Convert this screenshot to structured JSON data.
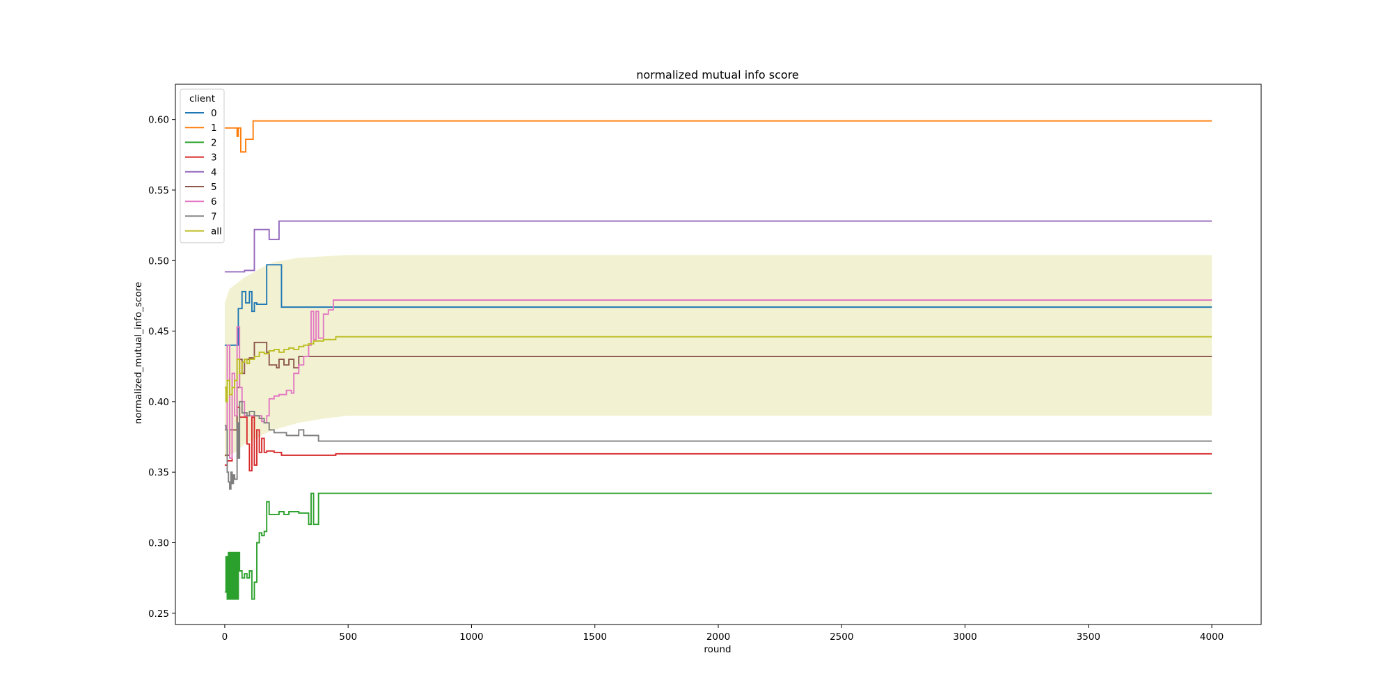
{
  "chart_data": {
    "type": "line",
    "title": "normalized mutual info score",
    "xlabel": "round",
    "ylabel": "normalized_mutual_info_score",
    "xlim": [
      -200,
      4200
    ],
    "ylim": [
      0.242,
      0.625
    ],
    "x_ticks": [
      0,
      500,
      1000,
      1500,
      2000,
      2500,
      3000,
      3500,
      4000
    ],
    "y_ticks": [
      0.25,
      0.3,
      0.35,
      0.4,
      0.45,
      0.5,
      0.55,
      0.6
    ],
    "x_tick_labels": [
      "0",
      "500",
      "1000",
      "1500",
      "2000",
      "2500",
      "3000",
      "3500",
      "4000"
    ],
    "y_tick_labels": [
      "0.25",
      "0.30",
      "0.35",
      "0.40",
      "0.45",
      "0.50",
      "0.55",
      "0.60"
    ],
    "grid": false,
    "legend": {
      "title": "client",
      "placement": "top-left"
    },
    "band": {
      "series": "all",
      "color": "#bcbd22",
      "opacity": 0.2,
      "x": [
        0,
        20,
        50,
        80,
        120,
        160,
        200,
        300,
        400,
        500,
        1000,
        2000,
        3000,
        4000
      ],
      "upper": [
        0.47,
        0.48,
        0.484,
        0.488,
        0.492,
        0.496,
        0.499,
        0.502,
        0.503,
        0.504,
        0.504,
        0.504,
        0.504,
        0.504
      ],
      "lower": [
        0.36,
        0.362,
        0.365,
        0.37,
        0.373,
        0.377,
        0.38,
        0.385,
        0.388,
        0.39,
        0.39,
        0.39,
        0.39,
        0.39
      ]
    },
    "series": [
      {
        "name": "0",
        "color": "#1f77b4",
        "x": [
          0,
          10,
          40,
          55,
          70,
          85,
          100,
          110,
          120,
          130,
          160,
          170,
          220,
          230,
          4000
        ],
        "y": [
          0.44,
          0.44,
          0.44,
          0.466,
          0.478,
          0.47,
          0.478,
          0.464,
          0.47,
          0.469,
          0.469,
          0.497,
          0.497,
          0.467,
          0.467
        ]
      },
      {
        "name": "1",
        "color": "#ff7f0e",
        "x": [
          0,
          15,
          40,
          50,
          55,
          65,
          75,
          85,
          110,
          115,
          120,
          4000
        ],
        "y": [
          0.594,
          0.594,
          0.594,
          0.588,
          0.594,
          0.577,
          0.577,
          0.586,
          0.586,
          0.599,
          0.599,
          0.599
        ]
      },
      {
        "name": "2",
        "color": "#2ca02c",
        "x": [
          0,
          5,
          10,
          15,
          20,
          25,
          30,
          35,
          40,
          45,
          50,
          55,
          60,
          70,
          80,
          90,
          100,
          110,
          120,
          130,
          140,
          150,
          160,
          170,
          180,
          190,
          220,
          240,
          260,
          300,
          340,
          350,
          360,
          380,
          400,
          4000
        ],
        "y": [
          0.265,
          0.29,
          0.26,
          0.293,
          0.26,
          0.293,
          0.26,
          0.293,
          0.26,
          0.293,
          0.26,
          0.293,
          0.28,
          0.275,
          0.278,
          0.275,
          0.28,
          0.26,
          0.272,
          0.3,
          0.307,
          0.305,
          0.308,
          0.329,
          0.32,
          0.32,
          0.322,
          0.32,
          0.322,
          0.321,
          0.313,
          0.335,
          0.313,
          0.335,
          0.335,
          0.335
        ]
      },
      {
        "name": "3",
        "color": "#d62728",
        "x": [
          0,
          10,
          20,
          30,
          50,
          60,
          80,
          90,
          100,
          110,
          120,
          130,
          140,
          150,
          160,
          170,
          180,
          200,
          220,
          230,
          450,
          4000
        ],
        "y": [
          0.355,
          0.358,
          0.358,
          0.38,
          0.396,
          0.389,
          0.389,
          0.37,
          0.351,
          0.389,
          0.355,
          0.38,
          0.364,
          0.374,
          0.364,
          0.365,
          0.365,
          0.364,
          0.364,
          0.362,
          0.363,
          0.363
        ]
      },
      {
        "name": "4",
        "color": "#9467bd",
        "x": [
          0,
          50,
          80,
          110,
          120,
          170,
          180,
          190,
          210,
          220,
          230,
          4000
        ],
        "y": [
          0.492,
          0.492,
          0.493,
          0.493,
          0.522,
          0.522,
          0.515,
          0.515,
          0.515,
          0.528,
          0.528,
          0.528
        ]
      },
      {
        "name": "5",
        "color": "#8c564b",
        "x": [
          0,
          20,
          40,
          50,
          60,
          70,
          80,
          100,
          110,
          120,
          130,
          150,
          170,
          180,
          200,
          210,
          220,
          240,
          260,
          280,
          300,
          350,
          4000
        ],
        "y": [
          0.362,
          0.38,
          0.38,
          0.41,
          0.43,
          0.42,
          0.43,
          0.431,
          0.431,
          0.442,
          0.442,
          0.442,
          0.435,
          0.426,
          0.426,
          0.424,
          0.43,
          0.426,
          0.43,
          0.424,
          0.432,
          0.432,
          0.432
        ]
      },
      {
        "name": "6",
        "color": "#e377c2",
        "x": [
          0,
          10,
          20,
          30,
          40,
          50,
          60,
          70,
          80,
          100,
          120,
          150,
          160,
          170,
          180,
          200,
          220,
          250,
          270,
          280,
          300,
          320,
          340,
          350,
          360,
          370,
          380,
          400,
          420,
          440,
          4000
        ],
        "y": [
          0.38,
          0.44,
          0.36,
          0.42,
          0.39,
          0.453,
          0.41,
          0.4,
          0.39,
          0.39,
          0.39,
          0.386,
          0.385,
          0.39,
          0.402,
          0.404,
          0.405,
          0.408,
          0.406,
          0.42,
          0.426,
          0.432,
          0.44,
          0.464,
          0.444,
          0.464,
          0.445,
          0.462,
          0.465,
          0.472,
          0.472
        ]
      },
      {
        "name": "7",
        "color": "#7f7f7f",
        "x": [
          0,
          5,
          10,
          15,
          20,
          25,
          30,
          35,
          40,
          50,
          55,
          60,
          70,
          80,
          90,
          100,
          120,
          140,
          160,
          180,
          200,
          250,
          300,
          320,
          340,
          380,
          400,
          4000
        ],
        "y": [
          0.383,
          0.38,
          0.35,
          0.343,
          0.338,
          0.35,
          0.342,
          0.348,
          0.345,
          0.385,
          0.36,
          0.4,
          0.392,
          0.392,
          0.39,
          0.393,
          0.39,
          0.388,
          0.385,
          0.38,
          0.378,
          0.376,
          0.38,
          0.376,
          0.376,
          0.372,
          0.372,
          0.372
        ]
      },
      {
        "name": "all",
        "color": "#bcbd22",
        "x": [
          0,
          5,
          10,
          20,
          30,
          40,
          50,
          60,
          70,
          80,
          90,
          100,
          120,
          140,
          160,
          180,
          200,
          220,
          240,
          260,
          280,
          300,
          320,
          340,
          360,
          380,
          400,
          450,
          500,
          1000,
          4000
        ],
        "y": [
          0.41,
          0.4,
          0.415,
          0.405,
          0.41,
          0.415,
          0.43,
          0.42,
          0.428,
          0.43,
          0.427,
          0.43,
          0.432,
          0.435,
          0.434,
          0.436,
          0.437,
          0.435,
          0.437,
          0.438,
          0.437,
          0.439,
          0.44,
          0.441,
          0.443,
          0.443,
          0.444,
          0.446,
          0.446,
          0.446,
          0.446
        ]
      }
    ]
  }
}
